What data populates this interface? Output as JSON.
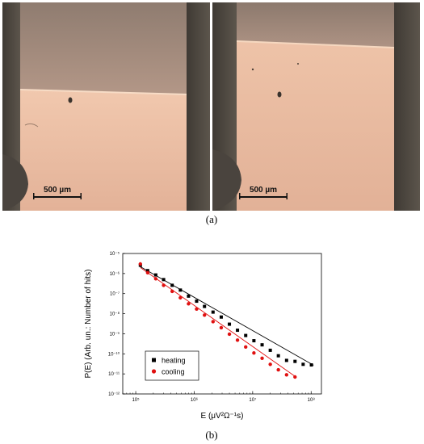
{
  "panel_a": {
    "label": "(a)",
    "images": [
      {
        "scale_bar_text": "500 µm"
      },
      {
        "scale_bar_text": "500 µm"
      }
    ],
    "colors": {
      "upper_phase": "#a88f80",
      "lower_phase": "#ecbea3",
      "dark_edge": "#4f4a44"
    }
  },
  "panel_b": {
    "label": "(b)"
  },
  "chart_data": {
    "type": "scatter",
    "ylabel": "P(E) (Arb. un.: Number of hits)",
    "xlabel": "E (μV²Ω⁻¹s)",
    "x_scale": "log",
    "y_scale": "log",
    "xlim": [
      60000,
      150000000
    ],
    "ylim": [
      1e-12,
      1e-05
    ],
    "x_ticks": [
      {
        "value": 100000,
        "label": "10⁵"
      },
      {
        "value": 1000000,
        "label": "10⁶"
      },
      {
        "value": 10000000,
        "label": "10⁷"
      },
      {
        "value": 100000000,
        "label": "10⁸"
      }
    ],
    "y_ticks": [
      {
        "value": 1e-12,
        "label": "10⁻¹²"
      },
      {
        "value": 1e-11,
        "label": "10⁻¹¹"
      },
      {
        "value": 1e-10,
        "label": "10⁻¹⁰"
      },
      {
        "value": 1e-09,
        "label": "10⁻⁹"
      },
      {
        "value": 1e-08,
        "label": "10⁻⁸"
      },
      {
        "value": 1e-07,
        "label": "10⁻⁷"
      },
      {
        "value": 1e-06,
        "label": "10⁻⁶"
      },
      {
        "value": 1e-05,
        "label": "10⁻⁵"
      }
    ],
    "legend_position": "bottom-left",
    "grid": false,
    "series": [
      {
        "name": "heating",
        "color": "#000000",
        "marker": "square",
        "x": [
          120000,
          160000,
          220000,
          300000,
          420000,
          580000,
          800000,
          1100000,
          1500000,
          2100000,
          2900000,
          4000000,
          5500000,
          7600000,
          10500000,
          14500000,
          20000000,
          27500000,
          38000000,
          53000000,
          73000000,
          101000000
        ],
        "y": [
          2.6e-06,
          1.4e-06,
          8.5e-07,
          5e-07,
          2.6e-07,
          1.5e-07,
          7.5e-08,
          4.2e-08,
          2.3e-08,
          1.2e-08,
          6.8e-09,
          3e-09,
          1.5e-09,
          8.2e-10,
          4.5e-10,
          2.8e-10,
          1.5e-10,
          8e-11,
          4.7e-11,
          4.2e-11,
          3e-11,
          2.8e-11
        ],
        "fit": {
          "x": [
            120000,
            110000000
          ],
          "y": [
            2.2e-06,
            2.7e-11
          ]
        }
      },
      {
        "name": "cooling",
        "color": "#e01010",
        "marker": "circle",
        "x": [
          120000,
          160000,
          220000,
          300000,
          420000,
          580000,
          800000,
          1100000,
          1500000,
          2100000,
          2900000,
          4000000,
          5500000,
          7600000,
          10500000,
          14500000,
          20000000,
          27500000,
          38000000,
          53000000
        ],
        "y": [
          3e-06,
          1.1e-06,
          5.5e-07,
          2.6e-07,
          1.3e-07,
          6.2e-08,
          3.1e-08,
          1.7e-08,
          8.5e-09,
          4e-09,
          2e-09,
          9.5e-10,
          4.8e-10,
          2.2e-10,
          1.1e-10,
          6e-11,
          3e-11,
          1.6e-11,
          9e-12,
          7e-12
        ],
        "fit": {
          "x": [
            120000,
            55000000
          ],
          "y": [
            2e-06,
            7e-12
          ]
        }
      }
    ]
  }
}
